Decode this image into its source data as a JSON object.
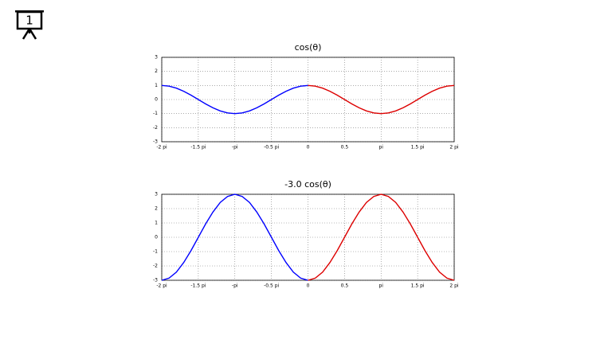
{
  "slide_number": "1",
  "chart_data": [
    {
      "type": "line",
      "title": "cos(θ)",
      "xlim": [
        -2,
        2
      ],
      "ylim": [
        -3,
        3
      ],
      "grid": true,
      "xticks": [
        {
          "value": -2,
          "label": "-2 pi"
        },
        {
          "value": -1.5,
          "label": "-1.5 pi"
        },
        {
          "value": -1,
          "label": "-pi"
        },
        {
          "value": -0.5,
          "label": "-0.5 pi"
        },
        0,
        0.5,
        {
          "value": 1,
          "label": "pi"
        },
        {
          "value": 1.5,
          "label": "1.5 pi"
        },
        {
          "value": 2,
          "label": "2 pi"
        }
      ],
      "yticks": [
        -3,
        -2,
        -1,
        0,
        1,
        2,
        3
      ],
      "series": [
        {
          "color": "#0000ff",
          "x": [
            -2,
            -1.9,
            -1.8,
            -1.7,
            -1.6,
            -1.5,
            -1.4,
            -1.3,
            -1.2,
            -1.1,
            -1,
            -0.9,
            -0.8,
            -0.7,
            -0.6,
            -0.5,
            -0.4,
            -0.3,
            -0.2,
            -0.1,
            0
          ],
          "values": [
            1,
            0.95,
            0.81,
            0.59,
            0.31,
            0,
            -0.31,
            -0.59,
            -0.81,
            -0.95,
            -1,
            -0.95,
            -0.81,
            -0.59,
            -0.31,
            0,
            0.31,
            0.59,
            0.81,
            0.95,
            1
          ]
        },
        {
          "color": "#dd0000",
          "x": [
            0,
            0.1,
            0.2,
            0.3,
            0.4,
            0.5,
            0.6,
            0.7,
            0.8,
            0.9,
            1,
            1.1,
            1.2,
            1.3,
            1.4,
            1.5,
            1.6,
            1.7,
            1.8,
            1.9,
            2
          ],
          "values": [
            1,
            0.95,
            0.81,
            0.59,
            0.31,
            0,
            -0.31,
            -0.59,
            -0.81,
            -0.95,
            -1,
            -0.95,
            -0.81,
            -0.59,
            -0.31,
            0,
            0.31,
            0.59,
            0.81,
            0.95,
            1
          ]
        }
      ]
    },
    {
      "type": "line",
      "title": "-3.0 cos(θ)",
      "xlim": [
        -2,
        2
      ],
      "ylim": [
        -3,
        3
      ],
      "grid": true,
      "xticks": [
        {
          "value": -2,
          "label": "-2 pi"
        },
        {
          "value": -1.5,
          "label": "-1.5 pi"
        },
        {
          "value": -1,
          "label": "-pi"
        },
        {
          "value": -0.5,
          "label": "-0.5 pi"
        },
        0,
        0.5,
        {
          "value": 1,
          "label": "pi"
        },
        {
          "value": 1.5,
          "label": "1.5 pi"
        },
        {
          "value": 2,
          "label": "2 pi"
        }
      ],
      "yticks": [
        -3,
        -2,
        -1,
        0,
        1,
        2,
        3
      ],
      "series": [
        {
          "color": "#0000ff",
          "x": [
            -2,
            -1.9,
            -1.8,
            -1.7,
            -1.6,
            -1.5,
            -1.4,
            -1.3,
            -1.2,
            -1.1,
            -1,
            -0.9,
            -0.8,
            -0.7,
            -0.6,
            -0.5,
            -0.4,
            -0.3,
            -0.2,
            -0.1,
            0
          ],
          "values": [
            -3,
            -2.85,
            -2.43,
            -1.76,
            -0.93,
            0,
            0.93,
            1.76,
            2.43,
            2.85,
            3,
            2.85,
            2.43,
            1.76,
            0.93,
            0,
            -0.93,
            -1.76,
            -2.43,
            -2.85,
            -3
          ]
        },
        {
          "color": "#dd0000",
          "x": [
            0,
            0.1,
            0.2,
            0.3,
            0.4,
            0.5,
            0.6,
            0.7,
            0.8,
            0.9,
            1,
            1.1,
            1.2,
            1.3,
            1.4,
            1.5,
            1.6,
            1.7,
            1.8,
            1.9,
            2
          ],
          "values": [
            -3,
            -2.85,
            -2.43,
            -1.76,
            -0.93,
            0,
            0.93,
            1.76,
            2.43,
            2.85,
            3,
            2.85,
            2.43,
            1.76,
            0.93,
            0,
            -0.93,
            -1.76,
            -2.43,
            -2.85,
            -3
          ]
        }
      ]
    }
  ]
}
